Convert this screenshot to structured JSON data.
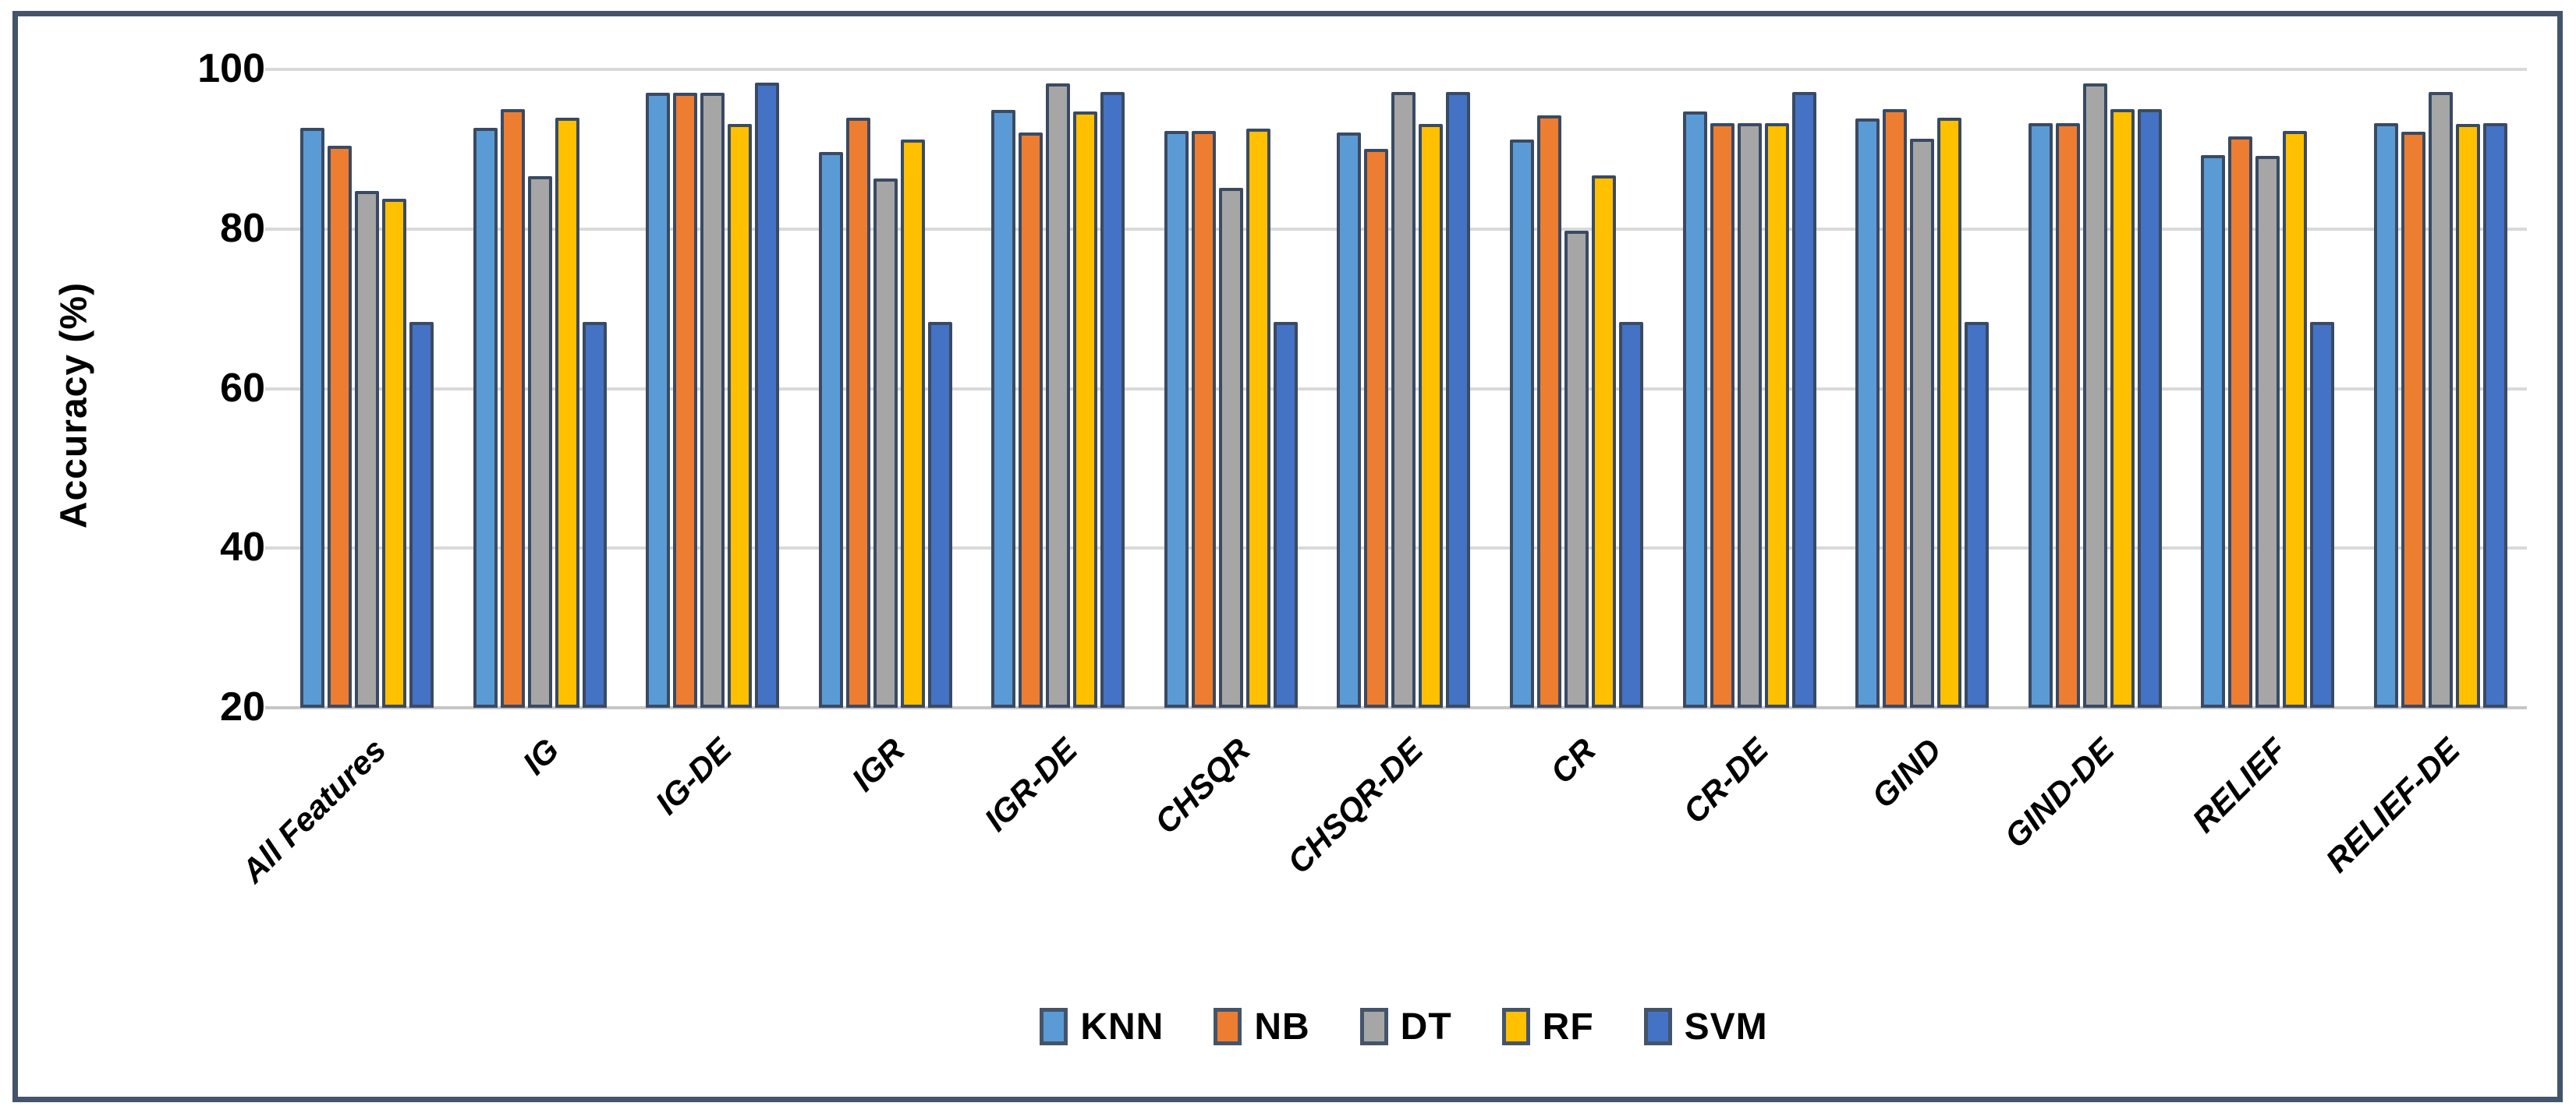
{
  "chart_data": {
    "type": "bar",
    "title": "",
    "xlabel": "",
    "ylabel": "Accuracy (%)",
    "ylim": [
      20,
      100
    ],
    "yticks": [
      100,
      80,
      60,
      40,
      20
    ],
    "grid": "horizontal",
    "legend_position": "bottom-center",
    "categories": [
      "All Features",
      "IG",
      "IG-DE",
      "IGR",
      "IGR-DE",
      "CHSQR",
      "CHSQR-DE",
      "CR",
      "CR-DE",
      "GIND",
      "GIND-DE",
      "RELIEF",
      "RELIEF-DE"
    ],
    "series": [
      {
        "name": "KNN",
        "color": "#5B9BD5",
        "values": [
          92.7,
          92.7,
          97.1,
          89.6,
          94.9,
          92.3,
          92.1,
          91.2,
          94.7,
          93.8,
          93.3,
          89.3,
          93.3
        ]
      },
      {
        "name": "NB",
        "color": "#ED7D31",
        "values": [
          90.4,
          95.0,
          97.1,
          93.9,
          92.1,
          92.3,
          90.0,
          94.2,
          93.3,
          95.0,
          93.3,
          91.6,
          92.2
        ]
      },
      {
        "name": "DT",
        "color": "#A6A6A6",
        "values": [
          84.8,
          86.6,
          97.1,
          86.3,
          98.2,
          85.2,
          97.2,
          79.8,
          93.3,
          91.3,
          98.2,
          89.2,
          97.2
        ]
      },
      {
        "name": "RF",
        "color": "#FFC000",
        "values": [
          83.8,
          93.9,
          93.2,
          91.2,
          94.7,
          92.6,
          93.2,
          86.7,
          93.3,
          93.9,
          95.0,
          92.3,
          93.2
        ]
      },
      {
        "name": "SVM",
        "color": "#4472C4",
        "values": [
          68.4,
          68.4,
          98.3,
          68.4,
          97.2,
          68.4,
          97.2,
          68.4,
          97.2,
          68.4,
          95.0,
          68.4,
          93.3
        ]
      }
    ],
    "style": {
      "frame_border_color": "#44546A",
      "bar_border_color": "#3A4A63",
      "gridline_color": "#D9D9D9",
      "baseline_color": "#C6C6C6",
      "text_color": "#000000"
    }
  }
}
